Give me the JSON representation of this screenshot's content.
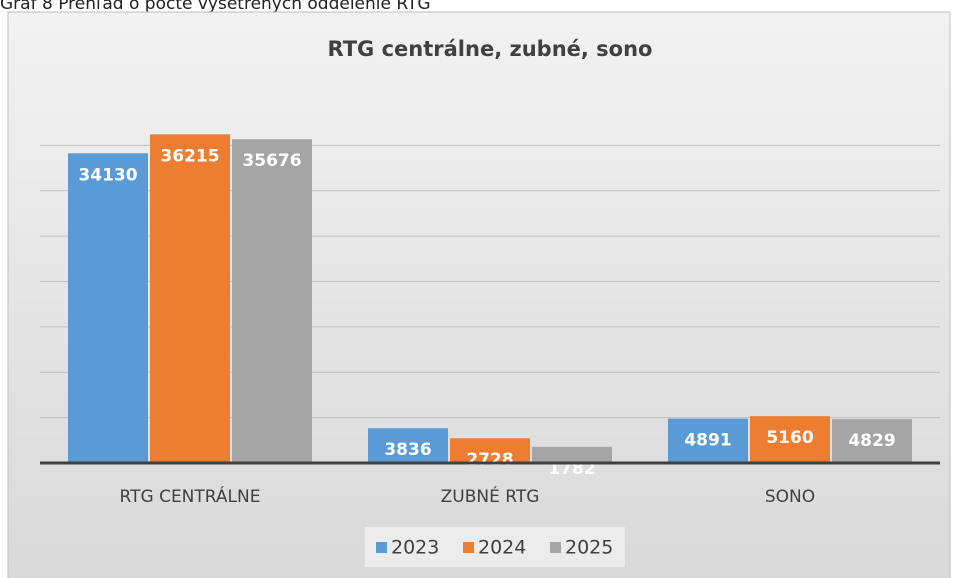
{
  "caption": "Graf 8 Prehľad o počte vyšetrených oddelenie RTG",
  "chart_data": {
    "type": "bar",
    "title": "RTG centrálne, zubné, sono",
    "categories": [
      "RTG CENTRÁLNE",
      "ZUBNÉ RTG",
      "SONO"
    ],
    "series": [
      {
        "name": "2023",
        "color": "#5b9bd5",
        "values": [
          34130,
          3836,
          4891
        ]
      },
      {
        "name": "2024",
        "color": "#ed7d31",
        "values": [
          36215,
          2728,
          5160
        ]
      },
      {
        "name": "2025",
        "color": "#a5a5a5",
        "values": [
          35676,
          1782,
          4829
        ]
      }
    ],
    "ylim": [
      0,
      40000
    ],
    "yticks": [
      0,
      5000,
      10000,
      15000,
      20000,
      25000,
      30000,
      35000,
      40000
    ],
    "ytick_labels": false,
    "grid": true,
    "legend": "bottom"
  }
}
